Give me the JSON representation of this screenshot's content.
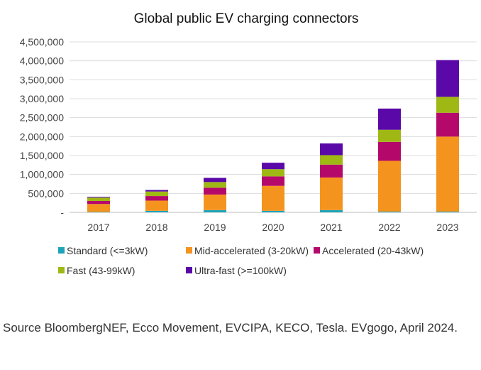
{
  "chart_data": {
    "type": "bar",
    "stacked": true,
    "title": "Global public EV charging connectors",
    "xlabel": "",
    "ylabel": "",
    "categories": [
      "2017",
      "2018",
      "2019",
      "2020",
      "2021",
      "2022",
      "2023"
    ],
    "ylim": [
      0,
      4500000
    ],
    "yticks": [
      0,
      500000,
      1000000,
      1500000,
      2000000,
      2500000,
      3000000,
      3500000,
      4000000,
      4500000
    ],
    "ytick_labels": [
      "-",
      "500,000",
      "1,000,000",
      "1,500,000",
      "2,000,000",
      "2,500,000",
      "3,000,000",
      "3,500,000",
      "4,000,000",
      "4,500,000"
    ],
    "grid": true,
    "legend_position": "bottom",
    "series": [
      {
        "name": "Standard (<=3kW)",
        "color": "#1fa3b8",
        "values": [
          10000,
          40000,
          60000,
          40000,
          60000,
          20000,
          20000
        ]
      },
      {
        "name": "Mid-accelerated (3-20kW)",
        "color": "#f4941f",
        "values": [
          210000,
          270000,
          410000,
          660000,
          860000,
          1340000,
          1980000
        ]
      },
      {
        "name": "Accelerated (20-43kW)",
        "color": "#b5086b",
        "values": [
          80000,
          120000,
          180000,
          250000,
          340000,
          500000,
          630000
        ]
      },
      {
        "name": "Fast (43-99kW)",
        "color": "#9fb814",
        "values": [
          90000,
          120000,
          150000,
          190000,
          250000,
          320000,
          420000
        ]
      },
      {
        "name": "Ultra-fast (>=100kW)",
        "color": "#5a08a8",
        "values": [
          20000,
          40000,
          110000,
          170000,
          310000,
          560000,
          970000
        ]
      }
    ]
  },
  "source_text": "Source BloombergNEF, Ecco Movement, EVCIPA, KECO, Tesla. EVgogo, April 2024."
}
